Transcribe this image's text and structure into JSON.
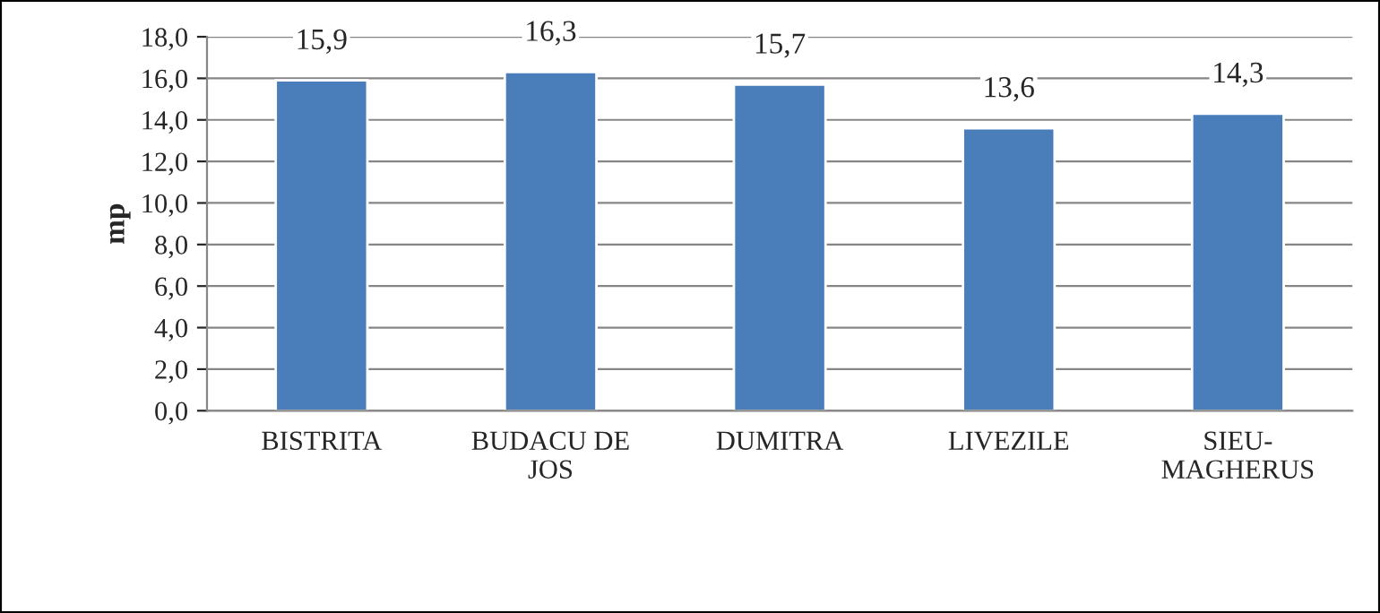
{
  "chart_data": {
    "type": "bar",
    "ylabel": "mp",
    "categories": [
      "BISTRITA",
      "BUDACU DE\nJOS",
      "DUMITRA",
      "LIVEZILE",
      "SIEU-\nMAGHERUS"
    ],
    "values": [
      15.9,
      16.3,
      15.7,
      13.6,
      14.3
    ],
    "value_labels": [
      "15,9",
      "16,3",
      "15,7",
      "13,6",
      "14,3"
    ],
    "color": "#4a7ebb",
    "ylim": [
      0,
      18
    ],
    "yticks": [
      {
        "value": 0,
        "label": "0,0"
      },
      {
        "value": 2,
        "label": "2,0"
      },
      {
        "value": 4,
        "label": "4,0"
      },
      {
        "value": 6,
        "label": "6,0"
      },
      {
        "value": 8,
        "label": "8,0"
      },
      {
        "value": 10,
        "label": "10,0"
      },
      {
        "value": 12,
        "label": "12,0"
      },
      {
        "value": 14,
        "label": "14,0"
      },
      {
        "value": 16,
        "label": "16,0"
      },
      {
        "value": 18,
        "label": "18,0"
      }
    ],
    "grid": "y",
    "legend": false
  }
}
